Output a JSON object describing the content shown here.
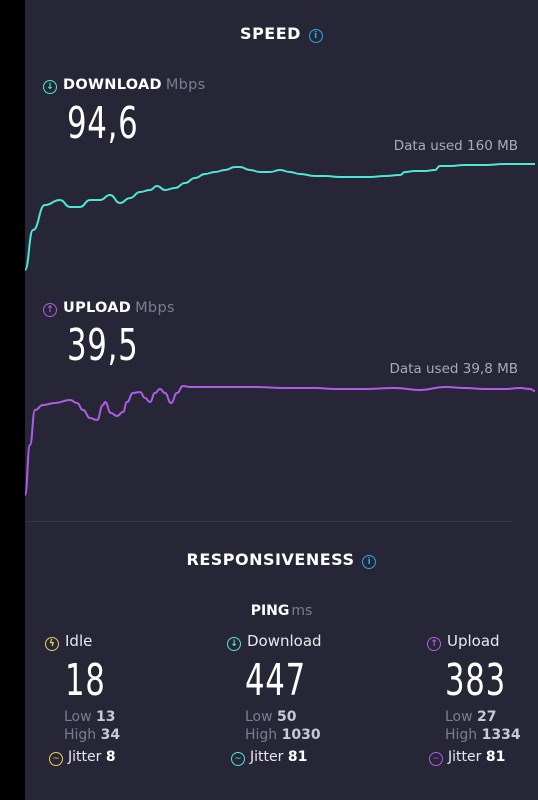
{
  "speed": {
    "title": "SPEED"
  },
  "download": {
    "label": "DOWNLOAD",
    "unit": "Mbps",
    "value": "94,6",
    "data_used": "Data used 160 MB",
    "color": "#4ee6d6",
    "curve": [
      [
        0,
        270
      ],
      [
        8,
        230
      ],
      [
        20,
        205
      ],
      [
        35,
        200
      ],
      [
        45,
        207
      ],
      [
        55,
        207
      ],
      [
        65,
        200
      ],
      [
        75,
        200
      ],
      [
        85,
        195
      ],
      [
        95,
        203
      ],
      [
        105,
        198
      ],
      [
        115,
        192
      ],
      [
        125,
        190
      ],
      [
        132,
        186
      ],
      [
        140,
        190
      ],
      [
        150,
        188
      ],
      [
        160,
        183
      ],
      [
        170,
        178
      ],
      [
        180,
        174
      ],
      [
        190,
        172
      ],
      [
        200,
        170
      ],
      [
        210,
        167
      ],
      [
        215,
        167
      ],
      [
        225,
        170
      ],
      [
        235,
        172
      ],
      [
        245,
        172
      ],
      [
        255,
        170
      ],
      [
        265,
        172
      ],
      [
        275,
        174
      ],
      [
        290,
        176
      ],
      [
        300,
        176
      ],
      [
        315,
        177
      ],
      [
        330,
        177
      ],
      [
        345,
        177
      ],
      [
        360,
        176
      ],
      [
        375,
        175
      ],
      [
        380,
        172
      ],
      [
        390,
        171
      ],
      [
        400,
        171
      ],
      [
        410,
        170
      ],
      [
        415,
        166
      ],
      [
        425,
        166
      ],
      [
        440,
        165
      ],
      [
        460,
        165
      ],
      [
        480,
        164
      ],
      [
        500,
        164
      ],
      [
        510,
        164
      ]
    ]
  },
  "upload": {
    "label": "UPLOAD",
    "unit": "Mbps",
    "value": "39,5",
    "data_used": "Data used 39,8 MB",
    "color": "#b05ce8",
    "curve": [
      [
        0,
        495
      ],
      [
        5,
        445
      ],
      [
        10,
        410
      ],
      [
        18,
        405
      ],
      [
        30,
        403
      ],
      [
        45,
        400
      ],
      [
        52,
        403
      ],
      [
        58,
        410
      ],
      [
        65,
        418
      ],
      [
        72,
        420
      ],
      [
        78,
        405
      ],
      [
        80,
        402
      ],
      [
        86,
        413
      ],
      [
        92,
        416
      ],
      [
        98,
        412
      ],
      [
        102,
        402
      ],
      [
        108,
        393
      ],
      [
        115,
        392
      ],
      [
        120,
        398
      ],
      [
        125,
        402
      ],
      [
        130,
        393
      ],
      [
        135,
        389
      ],
      [
        140,
        393
      ],
      [
        146,
        403
      ],
      [
        152,
        393
      ],
      [
        158,
        386
      ],
      [
        165,
        387
      ],
      [
        175,
        387
      ],
      [
        190,
        387
      ],
      [
        210,
        387
      ],
      [
        230,
        387
      ],
      [
        260,
        388
      ],
      [
        290,
        388
      ],
      [
        310,
        389
      ],
      [
        340,
        389
      ],
      [
        370,
        388
      ],
      [
        395,
        390
      ],
      [
        420,
        387
      ],
      [
        440,
        388
      ],
      [
        460,
        389
      ],
      [
        480,
        389
      ],
      [
        495,
        388
      ],
      [
        505,
        389
      ],
      [
        510,
        391
      ]
    ]
  },
  "responsiveness": {
    "title": "RESPONSIVENESS"
  },
  "ping": {
    "label": "PING",
    "unit": "ms",
    "columns": [
      {
        "head": "Idle",
        "value": "18",
        "low_label": "Low",
        "low": "13",
        "high_label": "High",
        "high": "34",
        "jitter_label": "Jitter",
        "jitter": "8",
        "color": "#e6cf5c",
        "icon": "idle-icon"
      },
      {
        "head": "Download",
        "value": "447",
        "low_label": "Low",
        "low": "50",
        "high_label": "High",
        "high": "1030",
        "jitter_label": "Jitter",
        "jitter": "81",
        "color": "#4ee6d6",
        "icon": "download-arrow-icon"
      },
      {
        "head": "Upload",
        "value": "383",
        "low_label": "Low",
        "low": "27",
        "high_label": "High",
        "high": "1334",
        "jitter_label": "Jitter",
        "jitter": "81",
        "color": "#b05ce8",
        "icon": "upload-arrow-icon"
      }
    ]
  }
}
